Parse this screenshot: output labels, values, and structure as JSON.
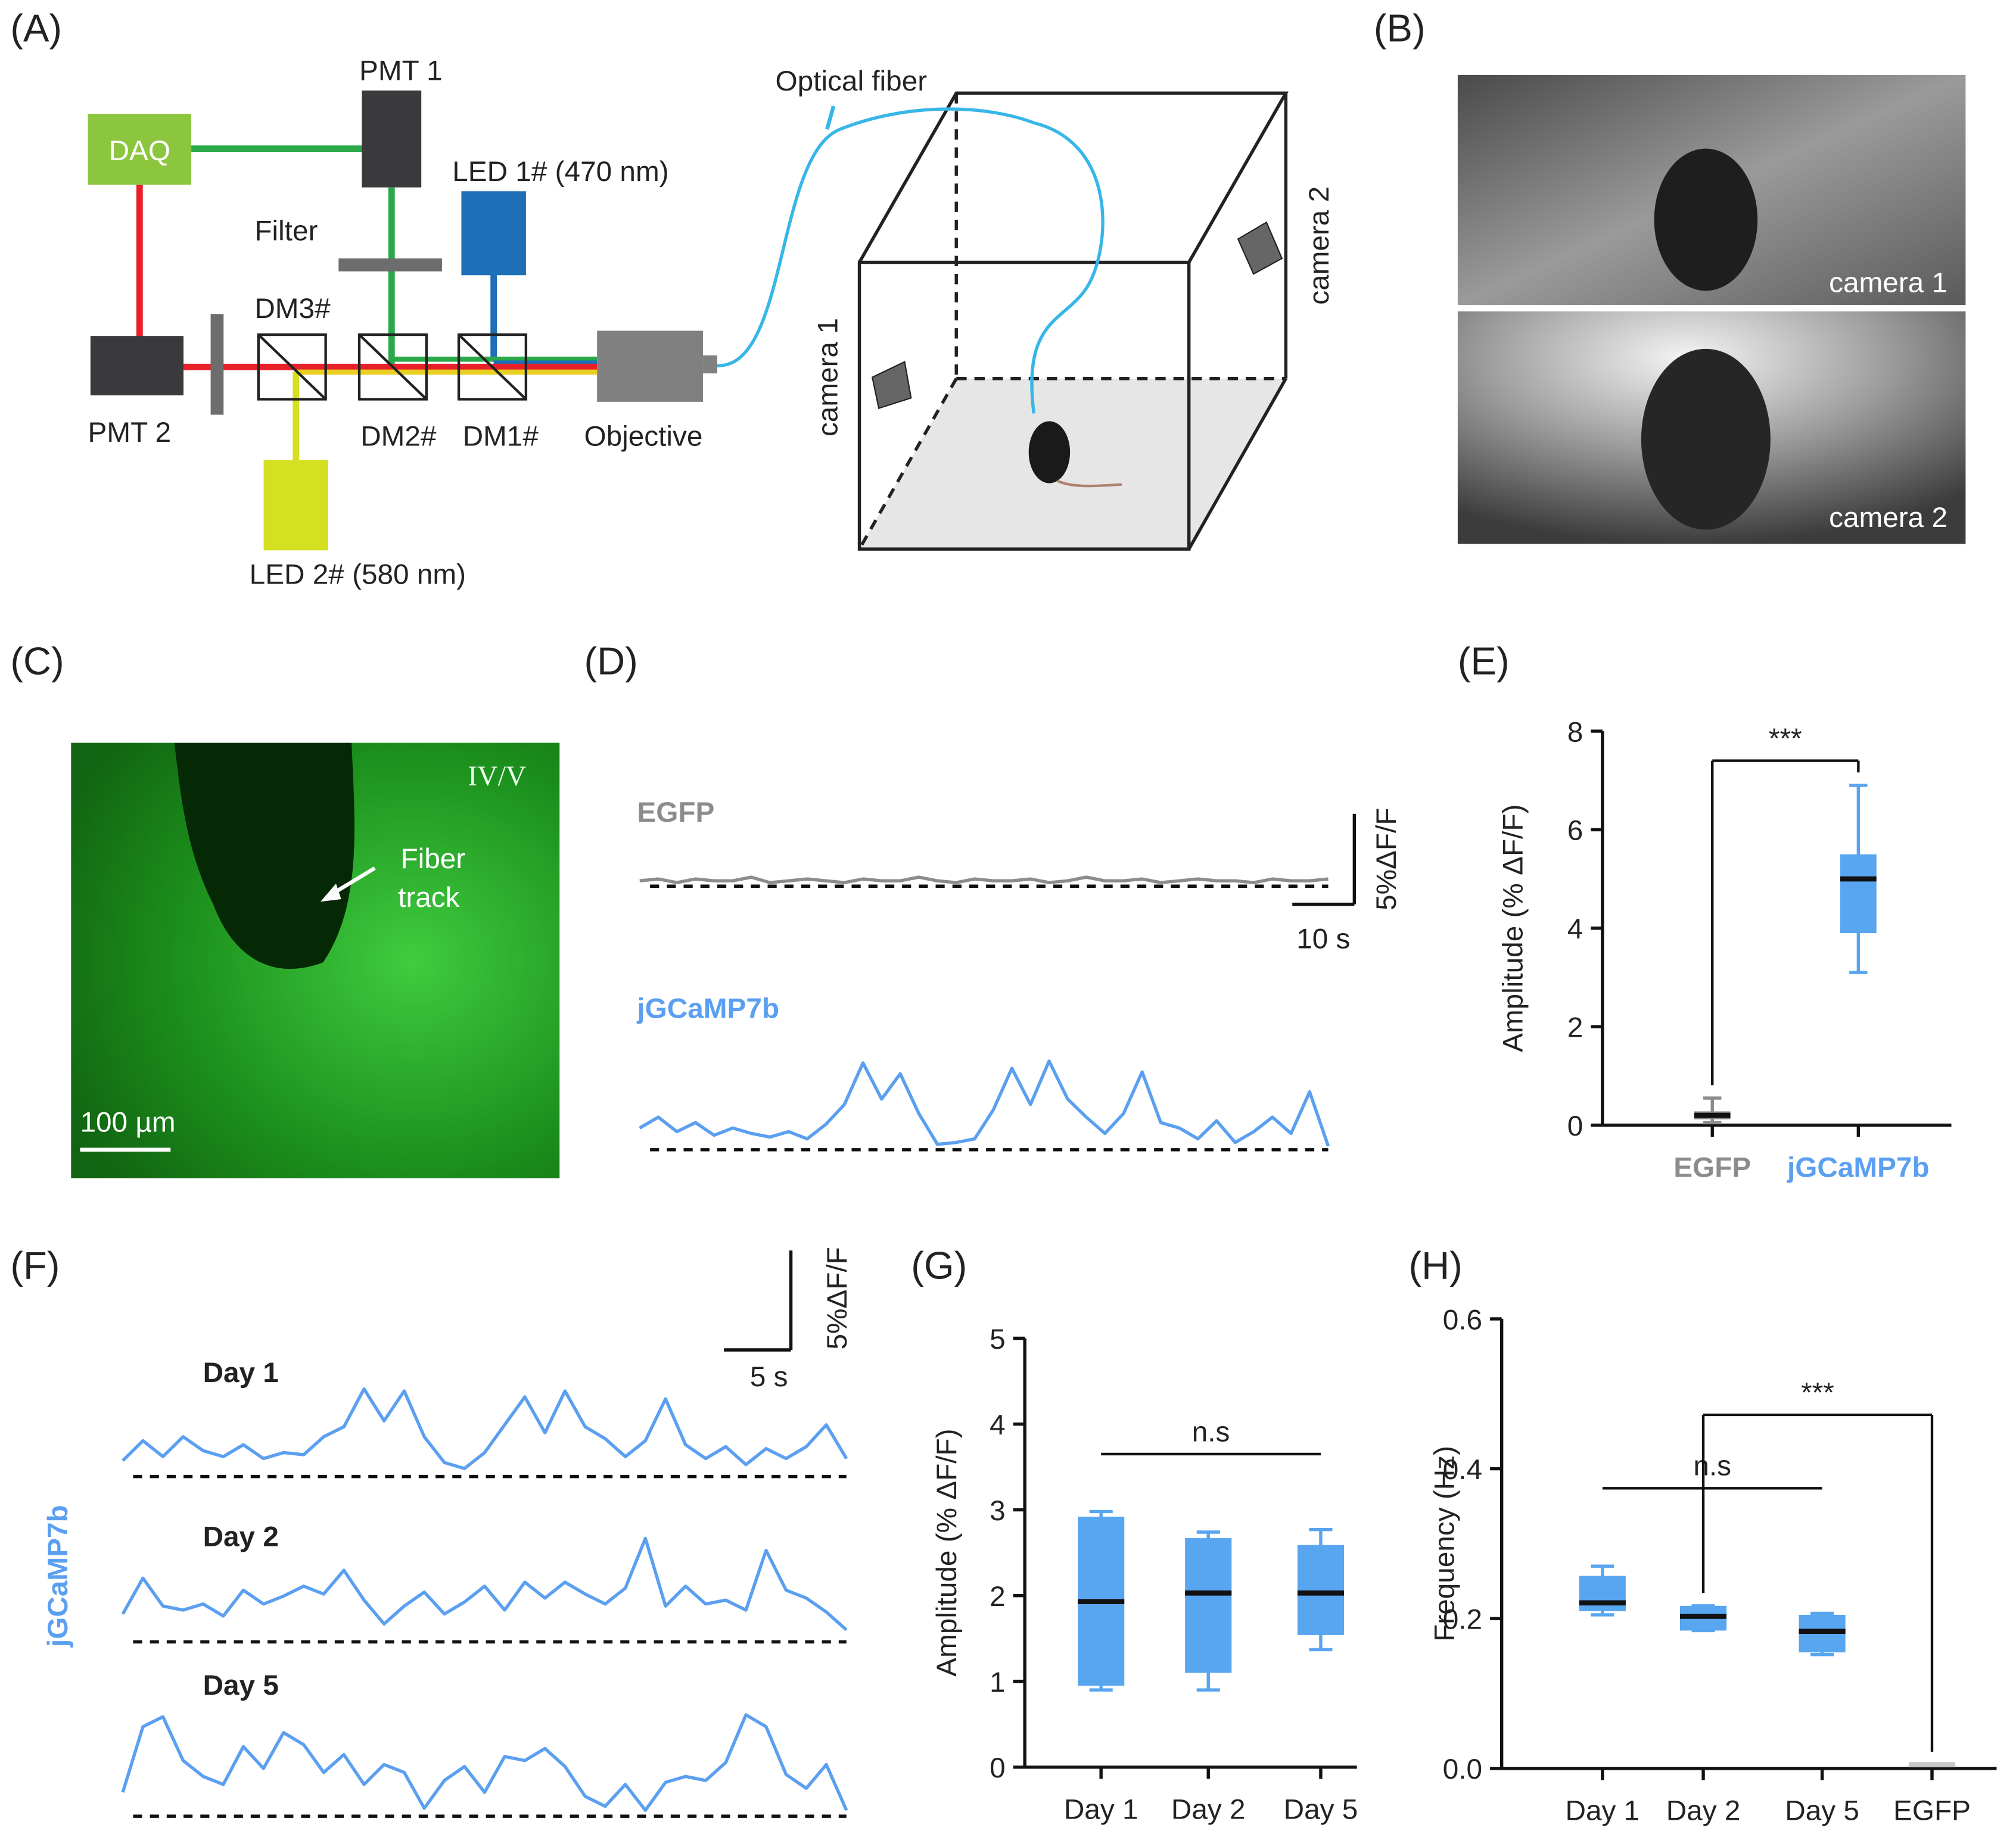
{
  "panel_labels": [
    "(A)",
    "(B)",
    "(C)",
    "(D)",
    "(E)",
    "(F)",
    "(G)",
    "(H)"
  ],
  "diagram": {
    "daq": "DAQ",
    "pmt1": "PMT 1",
    "pmt2": "PMT 2",
    "led1": "LED 1# (470 nm)",
    "led2": "LED 2# (580 nm)",
    "filter": "Filter",
    "dm3": "DM3#",
    "dm2": "DM2#",
    "dm1": "DM1#",
    "objective": "Objective",
    "fiber": "Optical fiber",
    "camera1": "camera 1",
    "camera2": "camera 2"
  },
  "photos": {
    "camera1": "camera 1",
    "camera2": "camera 2"
  },
  "micrograph": {
    "layer": "IV/V",
    "arrow_label": [
      "Fiber",
      "track"
    ],
    "scale_bar": "100 µm"
  },
  "chart_data": [
    {
      "type": "trace",
      "x": [
        0,
        3,
        6,
        9,
        12,
        15,
        18,
        21,
        24,
        27,
        30,
        33,
        36,
        39,
        42,
        45,
        48,
        51,
        54,
        57,
        60,
        63,
        66,
        69,
        72,
        75,
        78,
        81,
        84,
        87,
        90,
        93,
        96,
        99,
        102,
        105,
        108,
        111
      ],
      "series": [
        {
          "name": "EGFP",
          "color": "#8c8c8c",
          "values": [
            0.3,
            0.4,
            0.2,
            0.4,
            0.3,
            0.3,
            0.5,
            0.2,
            0.3,
            0.4,
            0.3,
            0.2,
            0.4,
            0.3,
            0.3,
            0.5,
            0.3,
            0.2,
            0.4,
            0.3,
            0.3,
            0.4,
            0.2,
            0.3,
            0.5,
            0.3,
            0.3,
            0.4,
            0.2,
            0.3,
            0.4,
            0.3,
            0.3,
            0.2,
            0.4,
            0.3,
            0.3,
            0.4
          ]
        },
        {
          "name": "jGCaMP7b",
          "color": "#5b9ff0",
          "values": [
            1.2,
            1.8,
            1.0,
            1.5,
            0.8,
            1.2,
            0.9,
            0.7,
            1.0,
            0.6,
            1.4,
            2.5,
            4.8,
            2.8,
            4.2,
            2.0,
            0.3,
            0.4,
            0.6,
            2.2,
            4.5,
            2.5,
            4.9,
            2.8,
            1.8,
            0.9,
            2.0,
            4.3,
            1.5,
            1.2,
            0.6,
            1.6,
            0.4,
            1.0,
            1.8,
            0.9,
            3.2,
            0.2
          ]
        }
      ],
      "scale_bar": {
        "y": {
          "value": 5,
          "label": "5%ΔF/F"
        },
        "x": {
          "value": 10,
          "label": "10 s"
        }
      }
    },
    {
      "type": "box",
      "ylabel": "Amplitude (% ΔF/F)",
      "categories": [
        "EGFP",
        "jGCaMP7b"
      ],
      "category_colors": [
        "#8c8c8c",
        "#5b9ff0"
      ],
      "boxes": [
        {
          "min": 0.05,
          "q1": 0.12,
          "median": 0.2,
          "q3": 0.28,
          "max": 0.55,
          "color": "#8c8c8c"
        },
        {
          "min": 3.1,
          "q1": 3.9,
          "median": 5.0,
          "q3": 5.5,
          "max": 6.9,
          "color": "#58a5f0"
        }
      ],
      "ylim": [
        0,
        8
      ],
      "yticks": [
        0,
        2,
        4,
        6,
        8
      ],
      "annotations": [
        {
          "text": "***",
          "from": 0,
          "to": 1,
          "y": 7.4,
          "legs": true
        }
      ]
    },
    {
      "type": "trace",
      "ylabel": "jGCaMP7b",
      "x": [
        0,
        1.5,
        3,
        4.5,
        6,
        7.5,
        9,
        10.5,
        12,
        13.5,
        15,
        16.5,
        18,
        19.5,
        21,
        22.5,
        24,
        25.5,
        27,
        28.5,
        30,
        31.5,
        33,
        34.5,
        36,
        37.5,
        39,
        40.5,
        42,
        43.5,
        45,
        46.5,
        48,
        49.5,
        51,
        52.5,
        54
      ],
      "series": [
        {
          "name": "Day 1",
          "color": "#5b9ff0",
          "values": [
            0.8,
            1.8,
            1.0,
            2.0,
            1.3,
            1.0,
            1.6,
            0.9,
            1.2,
            1.1,
            2.0,
            2.5,
            4.4,
            2.8,
            4.3,
            2.0,
            0.7,
            0.4,
            1.2,
            2.6,
            4.0,
            2.2,
            4.3,
            2.5,
            1.9,
            1.0,
            1.8,
            3.9,
            1.6,
            0.9,
            1.5,
            0.6,
            1.4,
            0.9,
            1.5,
            2.6,
            0.9
          ]
        },
        {
          "name": "Day 2",
          "color": "#5b9ff0",
          "values": [
            1.4,
            3.2,
            1.8,
            1.6,
            1.9,
            1.3,
            2.6,
            1.9,
            2.3,
            2.8,
            2.4,
            3.6,
            2.1,
            0.9,
            1.8,
            2.5,
            1.4,
            2.0,
            2.8,
            1.6,
            3.0,
            2.2,
            3.0,
            2.4,
            1.9,
            2.7,
            5.2,
            1.8,
            2.8,
            1.9,
            2.1,
            1.6,
            4.6,
            2.6,
            2.2,
            1.5,
            0.6
          ]
        },
        {
          "name": "Day 5",
          "color": "#5b9ff0",
          "values": [
            1.2,
            4.5,
            5.0,
            2.8,
            2.0,
            1.6,
            3.5,
            2.4,
            4.2,
            3.6,
            2.2,
            3.1,
            1.6,
            2.6,
            2.2,
            0.4,
            1.8,
            2.5,
            1.2,
            3.0,
            2.8,
            3.4,
            2.5,
            1.0,
            0.5,
            1.6,
            0.3,
            1.7,
            2.0,
            1.8,
            2.7,
            5.1,
            4.5,
            2.1,
            1.4,
            2.6,
            0.3
          ]
        }
      ],
      "scale_bar": {
        "y": {
          "value": 5,
          "label": "5%ΔF/F"
        },
        "x": {
          "value": 5,
          "label": "5 s"
        }
      }
    },
    {
      "type": "box",
      "ylabel": "Amplitude (% ΔF/F)",
      "categories": [
        "Day 1",
        "Day 2",
        "Day 5"
      ],
      "boxes": [
        {
          "min": 0.9,
          "q1": 0.95,
          "median": 1.93,
          "q3": 2.92,
          "max": 2.98,
          "color": "#58a5f0"
        },
        {
          "min": 0.9,
          "q1": 1.1,
          "median": 2.03,
          "q3": 2.67,
          "max": 2.74,
          "color": "#58a5f0"
        },
        {
          "min": 1.37,
          "q1": 1.54,
          "median": 2.03,
          "q3": 2.59,
          "max": 2.77,
          "color": "#58a5f0"
        }
      ],
      "ylim": [
        0,
        5
      ],
      "yticks": [
        0,
        1,
        2,
        3,
        4,
        5
      ],
      "annotations": [
        {
          "text": "n.s",
          "from": 0,
          "to": 2,
          "y": 3.65,
          "legs": false
        }
      ]
    },
    {
      "type": "box",
      "ylabel": "Frequency (Hz)",
      "categories": [
        "Day 1",
        "Day 2",
        "Day 5",
        "EGFP"
      ],
      "boxes": [
        {
          "min": 0.205,
          "q1": 0.21,
          "median": 0.221,
          "q3": 0.257,
          "max": 0.27,
          "color": "#58a5f0"
        },
        {
          "min": 0.184,
          "q1": 0.184,
          "median": 0.203,
          "q3": 0.217,
          "max": 0.217,
          "color": "#58a5f0"
        },
        {
          "min": 0.152,
          "q1": 0.155,
          "median": 0.183,
          "q3": 0.205,
          "max": 0.207,
          "color": "#58a5f0"
        },
        {
          "min": 0.005,
          "q1": 0.005,
          "median": 0.005,
          "q3": 0.005,
          "max": 0.005,
          "color": "#c8c8c8"
        }
      ],
      "ylim": [
        0,
        0.6
      ],
      "yticks": [
        {
          "value": 0,
          "label": "0.0"
        },
        0.2,
        0.4,
        0.6
      ],
      "annotations": [
        {
          "text": "n.s",
          "from": 0,
          "to": 2,
          "y": 0.374,
          "legs": false
        },
        {
          "text": "***",
          "from": 1,
          "to": 3,
          "y": 0.472,
          "legs": true
        }
      ]
    }
  ]
}
